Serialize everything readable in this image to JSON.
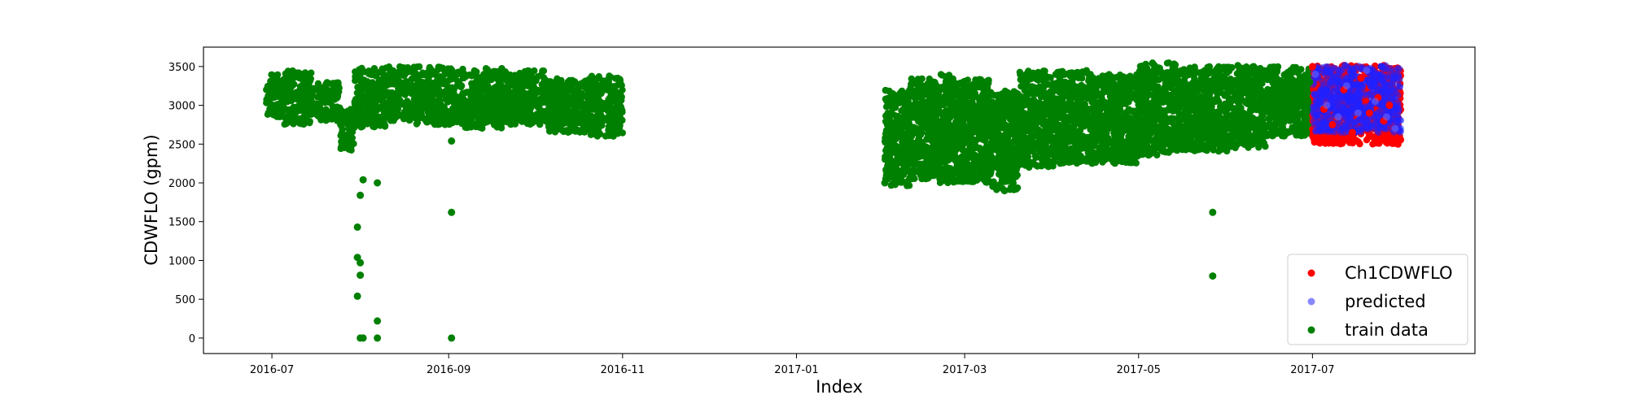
{
  "chart_data": {
    "type": "scatter",
    "title": "",
    "xlabel": "Index",
    "ylabel": "CDWFLO (gpm)",
    "x_tick_labels": [
      "2016-07",
      "2016-09",
      "2016-11",
      "2017-01",
      "2017-03",
      "2017-05",
      "2017-07"
    ],
    "y_ticks": [
      0,
      500,
      1000,
      1500,
      2000,
      2500,
      3000,
      3500
    ],
    "xlim": [
      "2016-06-07",
      "2017-08-27"
    ],
    "ylim": [
      -200,
      3750
    ],
    "grid": false,
    "legend_position": "lower-right",
    "series": [
      {
        "name": "Ch1CDWFLO",
        "color": "#ff0000",
        "points": [
          [
            "2017-07-01",
            3500
          ],
          [
            "2017-07-05",
            2950
          ],
          [
            "2017-07-08",
            2750
          ],
          [
            "2017-07-12",
            3200
          ],
          [
            "2017-07-15",
            2650
          ],
          [
            "2017-07-18",
            3350
          ],
          [
            "2017-07-21",
            2900
          ],
          [
            "2017-07-24",
            3100
          ],
          [
            "2017-07-26",
            2800
          ],
          [
            "2017-07-28",
            3000
          ],
          [
            "2017-07-30",
            2550
          ],
          [
            "2017-07-31",
            2500
          ]
        ]
      },
      {
        "name": "predicted",
        "color": "#6b6bff",
        "points": [
          [
            "2017-07-02",
            3400
          ],
          [
            "2017-07-06",
            3000
          ],
          [
            "2017-07-10",
            2850
          ],
          [
            "2017-07-13",
            3250
          ],
          [
            "2017-07-17",
            2900
          ],
          [
            "2017-07-20",
            3450
          ],
          [
            "2017-07-23",
            3050
          ],
          [
            "2017-07-27",
            2850
          ],
          [
            "2017-07-30",
            2700
          ]
        ]
      },
      {
        "name": "train data",
        "color": "#008000",
        "points": [
          [
            "2016-07-01",
            2950
          ],
          [
            "2016-07-10",
            3100
          ],
          [
            "2016-07-20",
            2900
          ],
          [
            "2016-07-28",
            2500
          ],
          [
            "2016-08-05",
            3200
          ],
          [
            "2016-08-15",
            3050
          ],
          [
            "2016-08-25",
            3300
          ],
          [
            "2016-09-05",
            2950
          ],
          [
            "2016-09-15",
            3100
          ],
          [
            "2016-09-25",
            3250
          ],
          [
            "2016-10-05",
            2800
          ],
          [
            "2016-10-15",
            2750
          ],
          [
            "2016-10-25",
            3000
          ],
          [
            "2016-10-31",
            2850
          ],
          [
            "2016-07-31",
            1430
          ],
          [
            "2016-07-31",
            1040
          ],
          [
            "2016-08-01",
            970
          ],
          [
            "2016-07-31",
            540
          ],
          [
            "2016-08-01",
            810
          ],
          [
            "2016-08-01",
            1840
          ],
          [
            "2016-08-02",
            2040
          ],
          [
            "2016-08-07",
            2000
          ],
          [
            "2016-08-07",
            220
          ],
          [
            "2016-08-01",
            0
          ],
          [
            "2016-08-02",
            0
          ],
          [
            "2016-08-07",
            0
          ],
          [
            "2016-09-02",
            2540
          ],
          [
            "2016-09-02",
            1620
          ],
          [
            "2016-09-02",
            0
          ],
          [
            "2017-02-01",
            2000
          ],
          [
            "2017-02-10",
            2600
          ],
          [
            "2017-02-20",
            2400
          ],
          [
            "2017-03-01",
            2300
          ],
          [
            "2017-03-10",
            2200
          ],
          [
            "2017-03-15",
            1900
          ],
          [
            "2017-03-25",
            2700
          ],
          [
            "2017-04-05",
            2800
          ],
          [
            "2017-04-15",
            2500
          ],
          [
            "2017-04-25",
            2700
          ],
          [
            "2017-05-05",
            2900
          ],
          [
            "2017-05-15",
            3100
          ],
          [
            "2017-05-25",
            3000
          ],
          [
            "2017-06-05",
            3200
          ],
          [
            "2017-06-15",
            3050
          ],
          [
            "2017-06-25",
            3150
          ],
          [
            "2017-06-30",
            3300
          ],
          [
            "2017-05-27",
            1620
          ],
          [
            "2017-05-27",
            800
          ]
        ]
      }
    ],
    "bands": [
      {
        "series": "train data",
        "color": "#008000",
        "segments": [
          [
            "2016-06-29",
            "2016-07-05",
            2850,
            3400
          ],
          [
            "2016-07-05",
            "2016-07-15",
            2750,
            3450
          ],
          [
            "2016-07-15",
            "2016-07-25",
            2800,
            3300
          ],
          [
            "2016-07-25",
            "2016-07-30",
            2400,
            2950
          ],
          [
            "2016-07-30",
            "2016-08-10",
            2700,
            3480
          ],
          [
            "2016-08-10",
            "2016-08-20",
            2800,
            3500
          ],
          [
            "2016-08-20",
            "2016-09-05",
            2750,
            3500
          ],
          [
            "2016-09-05",
            "2016-09-20",
            2700,
            3480
          ],
          [
            "2016-09-20",
            "2016-10-05",
            2750,
            3450
          ],
          [
            "2016-10-05",
            "2016-10-20",
            2650,
            3350
          ],
          [
            "2016-10-20",
            "2016-11-01",
            2600,
            3380
          ],
          [
            "2017-02-01",
            "2017-02-10",
            1950,
            3200
          ],
          [
            "2017-02-10",
            "2017-02-20",
            2050,
            3350
          ],
          [
            "2017-02-20",
            "2017-03-01",
            2000,
            3400
          ],
          [
            "2017-03-01",
            "2017-03-10",
            2000,
            3350
          ],
          [
            "2017-03-10",
            "2017-03-20",
            1900,
            3200
          ],
          [
            "2017-03-20",
            "2017-04-01",
            2200,
            3450
          ],
          [
            "2017-04-01",
            "2017-04-15",
            2250,
            3450
          ],
          [
            "2017-04-15",
            "2017-05-01",
            2250,
            3400
          ],
          [
            "2017-05-01",
            "2017-05-15",
            2350,
            3550
          ],
          [
            "2017-05-15",
            "2017-06-01",
            2400,
            3500
          ],
          [
            "2017-06-01",
            "2017-06-15",
            2450,
            3520
          ],
          [
            "2017-06-15",
            "2017-07-01",
            2600,
            3500
          ]
        ]
      },
      {
        "series": "Ch1CDWFLO",
        "color": "#ff0000",
        "segments": [
          [
            "2017-07-01",
            "2017-08-01",
            2500,
            3520
          ]
        ]
      },
      {
        "series": "predicted",
        "color": "#2020ff",
        "segments": [
          [
            "2017-07-01",
            "2017-08-01",
            2650,
            3520
          ]
        ]
      }
    ]
  }
}
